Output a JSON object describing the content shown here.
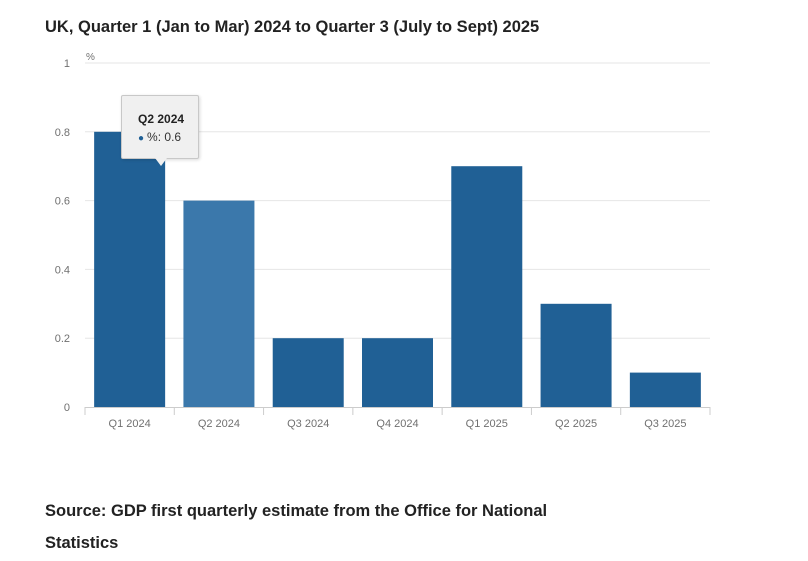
{
  "header": {
    "title": "UK, Quarter 1 (Jan to Mar) 2024 to Quarter 3 (July to Sept) 2025"
  },
  "chart_data": {
    "type": "bar",
    "title": "UK, Quarter 1 (Jan to Mar) 2024 to Quarter 3 (July to Sept) 2025",
    "ylabel": "%",
    "xlabel": "",
    "categories": [
      "Q1 2024",
      "Q2 2024",
      "Q3 2024",
      "Q4 2024",
      "Q1 2025",
      "Q2 2025",
      "Q3 2025"
    ],
    "series": [
      {
        "name": "%",
        "values": [
          0.8,
          0.6,
          0.2,
          0.2,
          0.7,
          0.3,
          0.1
        ]
      }
    ],
    "ylim": [
      0,
      1
    ],
    "yticks": [
      "0",
      "0.2",
      "0.4",
      "0.6",
      "0.8",
      "1"
    ],
    "grid": true,
    "highlighted_index": 1,
    "colors": {
      "bar": "#206095",
      "bar_hover": "#3b78ab",
      "grid": "#e6e6e6",
      "axis": "#cccccc",
      "tick_text": "#707070"
    }
  },
  "tooltip": {
    "title": "Q2 2024",
    "series_label": "%:",
    "value": "0.6"
  },
  "footer": {
    "source": "Source: GDP first quarterly estimate from the Office for National Statistics"
  }
}
